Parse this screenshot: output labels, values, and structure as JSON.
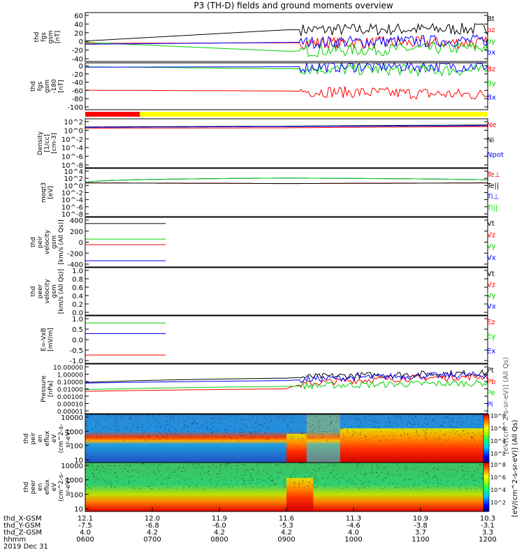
{
  "title": "P3 (TH-D) fields and ground moments overview",
  "date_label": "2019 Dec 31",
  "x_axis_rows": [
    {
      "name": "thd_X-GSM",
      "values": [
        "12.1",
        "12.0",
        "11.9",
        "11.6",
        "11.3",
        "10.9",
        "10.3"
      ]
    },
    {
      "name": "thd_Y-GSM",
      "values": [
        "-7.5",
        "-6.8",
        "-6.0",
        "-5.3",
        "-4.6",
        "-3.8",
        "-3.1"
      ]
    },
    {
      "name": "thd_Z-GSM",
      "values": [
        "4.0",
        "4.2",
        "4.2",
        "4.2",
        "4.0",
        "3.7",
        "3.3"
      ]
    },
    {
      "name": "hhmm",
      "values": [
        "0600",
        "0700",
        "0800",
        "0900",
        "1000",
        "1100",
        "1200"
      ]
    }
  ],
  "colorbar": {
    "label": "[eV/(cm^2-s-sr-eV)] (All Qs)",
    "overlay_label": "[eV/(cm^2-s-sr-eV)] (All Qs)",
    "ticks_top": [
      "10^8",
      "10^6",
      "10^4",
      "10^2"
    ],
    "ticks_bottom": [
      "10^8",
      "10^6",
      "10^4",
      "10^2"
    ]
  },
  "colors": {
    "black": "#000000",
    "red": "#ff0000",
    "green": "#00d000",
    "blue": "#0000ff",
    "yellow": "#ffff00",
    "bar_red": "#ff0000"
  },
  "chart_data": [
    {
      "type": "line",
      "ylabel_lines": [
        "thd",
        "fgs",
        "gsm",
        "[nT]"
      ],
      "yticks": [
        "60",
        "40",
        "20",
        "0",
        "-20",
        "-40"
      ],
      "ylim": [
        -40,
        65
      ],
      "legend": [
        "Bt",
        "bz",
        "by",
        "bx"
      ],
      "legend_colors": [
        "#000000",
        "#ff0000",
        "#00d000",
        "#0000ff"
      ],
      "series": [
        {
          "name": "Bt",
          "segments": [
            [
              0,
              4.5
            ],
            [
              4.5,
              5.7
            ],
            [
              5.7,
              6.0
            ]
          ],
          "values": [
            4,
            28,
            30
          ]
        },
        {
          "name": "bz",
          "values": [
            -1,
            0,
            0
          ]
        },
        {
          "name": "by",
          "values": [
            1,
            -18,
            -10
          ]
        },
        {
          "name": "bx",
          "values": [
            -3,
            1,
            5
          ]
        }
      ]
    },
    {
      "type": "line",
      "ylabel_lines": [
        "thd",
        "fgs",
        "gsm",
        "-180",
        "[nT]"
      ],
      "yticks": [
        "0",
        "-20",
        "-40",
        "-60",
        "-80",
        "-100"
      ],
      "ylim": [
        -110,
        10
      ],
      "legend": [
        "Bz",
        "By",
        "Bx"
      ],
      "legend_colors": [
        "#ff0000",
        "#00d000",
        "#0000ff"
      ],
      "series": [
        {
          "name": "Bz",
          "values": [
            -60,
            -62,
            -72
          ]
        },
        {
          "name": "By",
          "values": [
            0,
            -5,
            -10
          ]
        },
        {
          "name": "Bx",
          "values": [
            -1,
            0,
            2
          ]
        }
      ]
    },
    {
      "type": "line",
      "ylabel_lines": [
        "Density",
        "[1/cc]",
        "[cm-3]"
      ],
      "yticks": [
        "10^2",
        "10^0",
        "10^-2",
        "10^-4",
        "10^-6",
        "10^-8"
      ],
      "ylim": [
        1e-09,
        1000.0
      ],
      "legend": [
        "Ne",
        "Ni",
        "Npot"
      ],
      "legend_colors": [
        "#ff0000",
        "#000000",
        "#0000ff"
      ],
      "series": [
        {
          "name": "Ne",
          "values": [
            5,
            6,
            12
          ]
        },
        {
          "name": "Ni",
          "values": [
            10,
            15,
            30
          ]
        },
        {
          "name": "Npot",
          "values": [
            8,
            12,
            20
          ]
        }
      ]
    },
    {
      "type": "line",
      "ylabel_lines": [
        "moqt3",
        "[eV]"
      ],
      "yticks": [
        "10^4",
        "10^2",
        "10^0",
        "10^-2",
        "10^-4",
        "10^-6",
        "10^-8"
      ],
      "ylim": [
        1e-10,
        100000.0
      ],
      "legend": [
        "Te⊥",
        "Te||",
        "Ti⊥",
        "Ti||"
      ],
      "legend_colors": [
        "#ff0000",
        "#000000",
        "#0000ff",
        "#00d000"
      ],
      "series": [
        {
          "name": "Te⊥",
          "values": [
            3,
            2,
            3
          ]
        },
        {
          "name": "Te||",
          "values": [
            3,
            2,
            3
          ]
        },
        {
          "name": "Ti⊥",
          "values": [
            5,
            100,
            30
          ]
        },
        {
          "name": "Ti||",
          "values": [
            5,
            100,
            30
          ]
        }
      ]
    },
    {
      "type": "line",
      "ylabel_lines": [
        "thd",
        "peir",
        "velocity",
        "gsm",
        "[km/s (All Qs)]"
      ],
      "yticks": [
        "400",
        "200",
        "0",
        "-200",
        "-400"
      ],
      "ylim": [
        -400,
        400
      ],
      "legend": [
        "Vt",
        "Vz",
        "Vy",
        "Vx"
      ],
      "legend_colors": [
        "#000000",
        "#ff0000",
        "#00d000",
        "#0000ff"
      ],
      "series": [
        {
          "name": "Vt",
          "values": [
            300
          ]
        },
        {
          "name": "Vz",
          "values": [
            -40
          ]
        },
        {
          "name": "Vy",
          "values": [
            50
          ]
        },
        {
          "name": "Vx",
          "values": [
            -300
          ]
        }
      ]
    },
    {
      "type": "line",
      "ylabel_lines": [
        "thd",
        "peer",
        "velocity",
        "gsm",
        "[km/s (All Qs)]"
      ],
      "yticks": [
        "1.0",
        "0.8",
        "0.6",
        "0.4",
        "0.2",
        "0.0"
      ],
      "ylim": [
        0,
        1
      ],
      "legend": [
        "Vt",
        "Vz",
        "Vy",
        "Vx"
      ],
      "legend_colors": [
        "#000000",
        "#ff0000",
        "#00d000",
        "#0000ff"
      ],
      "series": []
    },
    {
      "type": "line",
      "ylabel_lines": [
        "E=-VxB",
        "[mV/m]"
      ],
      "yticks": [
        "1.0",
        "0.5",
        "0.0",
        "-0.5",
        "-1.0"
      ],
      "ylim": [
        -1,
        1
      ],
      "legend": [
        "Ez",
        "Ey",
        "Ex"
      ],
      "legend_colors": [
        "#ff0000",
        "#00d000",
        "#0000ff"
      ],
      "series": [
        {
          "name": "Ez",
          "values": [
            -0.65
          ]
        },
        {
          "name": "Ey",
          "values": [
            0.7
          ]
        },
        {
          "name": "Ex",
          "values": [
            0.25
          ]
        }
      ]
    },
    {
      "type": "line",
      "ylabel_lines": [
        "Pressure",
        "[nPa]"
      ],
      "yticks": [
        "10.00000",
        "1.00000",
        "0.10000",
        "0.01000",
        "0.00100",
        "0.00010",
        "0.00001"
      ],
      "ylim": [
        1e-05,
        10
      ],
      "legend": [
        "Pt",
        "Pb",
        "Pe",
        "Pi"
      ],
      "legend_colors": [
        "#000000",
        "#ff0000",
        "#00d000",
        "#0000ff"
      ],
      "series": [
        {
          "name": "Pt",
          "values": [
            0.06,
            0.2,
            0.8
          ]
        },
        {
          "name": "Pb",
          "values": [
            0.005,
            0.01,
            0.3
          ]
        },
        {
          "name": "Pe",
          "values": [
            0.008,
            0.02,
            0.05
          ]
        },
        {
          "name": "Pi",
          "values": [
            0.05,
            0.1,
            0.5
          ]
        }
      ]
    },
    {
      "type": "heatmap",
      "ylabel_lines": [
        "thd",
        "peir",
        "en",
        "eflux",
        "eV",
        "(cm^2-s-",
        "sr-eV)"
      ],
      "yticks": [
        "10000",
        "1000",
        "100",
        "10"
      ],
      "ylim": [
        5,
        25000
      ]
    },
    {
      "type": "heatmap",
      "ylabel_lines": [
        "thd",
        "peer",
        "en",
        "eflux",
        "eV",
        "(cm^2-s-",
        "sr-eV)"
      ],
      "yticks": [
        "10000",
        "1000",
        "100",
        "10"
      ],
      "ylim": [
        5,
        25000
      ]
    }
  ]
}
